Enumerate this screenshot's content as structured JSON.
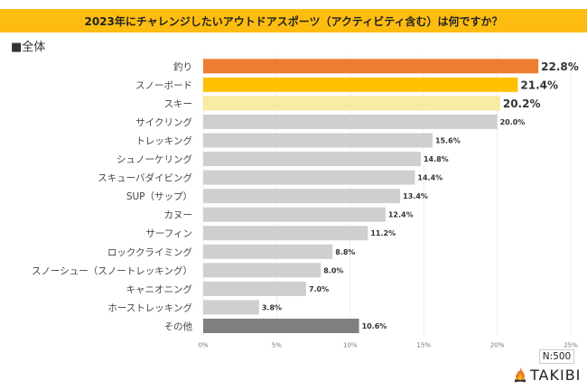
{
  "header": {
    "title": "2023年にチャレンジしたいアウトドアスポーツ（アクティビティ含む）は何ですか？",
    "subtitle": "■全体"
  },
  "footer": {
    "sample_size": "N:500",
    "brand": "TAKIBI",
    "brand_icon": "campfire-icon"
  },
  "colors": {
    "banner": "#fdbd10",
    "rank1": "#ed7d31",
    "rank2": "#ffc000",
    "rank3": "#f8eaa0",
    "default": "#d0cecf",
    "other": "#7f7f7f",
    "rank1_label": "#ed7d31"
  },
  "chart_data": {
    "type": "bar",
    "orientation": "horizontal",
    "title": "2023年にチャレンジしたいアウトドアスポーツ（アクティビティ含む）は何ですか？",
    "categories": [
      "釣り",
      "スノーボード",
      "スキー",
      "サイクリング",
      "トレッキング",
      "シュノーケリング",
      "スキューバダイビング",
      "SUP（サップ）",
      "カヌー",
      "サーフィン",
      "ロッククライミング",
      "スノーシュー（スノートレッキング）",
      "キャニオニング",
      "ホーストレッキング",
      "その他"
    ],
    "values": [
      22.8,
      21.4,
      20.2,
      20.0,
      15.6,
      14.8,
      14.4,
      13.4,
      12.4,
      11.2,
      8.8,
      8.0,
      7.0,
      3.8,
      10.6
    ],
    "value_labels": [
      "22.8%",
      "21.4%",
      "20.2%",
      "20.0%",
      "15.6%",
      "14.8%",
      "14.4%",
      "13.4%",
      "12.4%",
      "11.2%",
      "8.8%",
      "8.0%",
      "7.0%",
      "3.8%",
      "10.6%"
    ],
    "xlim": [
      0,
      25
    ],
    "xticks": [
      0,
      5,
      10,
      15,
      20,
      25
    ],
    "xtick_labels": [
      "0%",
      "5%",
      "10%",
      "15%",
      "20%",
      "25%"
    ],
    "grid": true,
    "xlabel": "",
    "ylabel": "",
    "unit": "%"
  }
}
